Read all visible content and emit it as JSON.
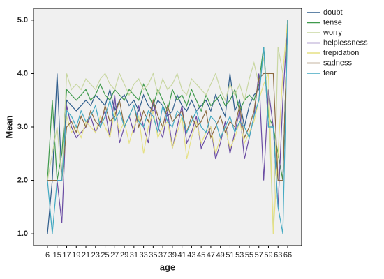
{
  "chart_data": {
    "type": "line",
    "x_label": "age",
    "y_label": "Mean",
    "categories": [
      "6",
      null,
      "15",
      null,
      "17",
      null,
      "19",
      null,
      "21",
      null,
      "23",
      null,
      "25",
      null,
      "27",
      null,
      "29",
      null,
      "31",
      null,
      "33",
      null,
      "35",
      null,
      "37",
      null,
      "39",
      null,
      "41",
      null,
      "43",
      null,
      "45",
      null,
      "47",
      null,
      "49",
      null,
      "51",
      null,
      "53",
      null,
      "55",
      null,
      "57",
      null,
      "59",
      null,
      "63",
      null,
      "66"
    ],
    "ylim": [
      0.78,
      5.22
    ],
    "yticks": [
      {
        "value": 1,
        "label": "1.0"
      },
      {
        "value": 2,
        "label": "2.0"
      },
      {
        "value": 3,
        "label": "3.0"
      },
      {
        "value": 4,
        "label": "4.0"
      },
      {
        "value": 5,
        "label": "5.0"
      }
    ],
    "series": [
      {
        "name": "doubt",
        "color": "#2f5d8c",
        "values": [
          1.0,
          2.0,
          4.0,
          2.0,
          3.5,
          3.4,
          3.3,
          3.4,
          3.5,
          3.4,
          3.6,
          3.5,
          3.4,
          3.7,
          3.3,
          3.5,
          3.6,
          3.4,
          3.5,
          3.3,
          3.6,
          3.4,
          3.3,
          3.5,
          3.4,
          3.2,
          3.3,
          3.6,
          3.4,
          3.3,
          3.5,
          3.3,
          3.4,
          3.5,
          3.3,
          3.6,
          3.4,
          3.2,
          4.0,
          3.3,
          3.5,
          3.0,
          3.4,
          3.6,
          3.7,
          4.5,
          3.0,
          3.0,
          2.0,
          2.0,
          5.0
        ]
      },
      {
        "name": "tense",
        "color": "#3f9a4c",
        "values": [
          2.0,
          3.5,
          2.0,
          2.5,
          3.7,
          3.6,
          3.5,
          3.6,
          3.7,
          3.5,
          3.6,
          3.8,
          3.6,
          3.5,
          3.7,
          3.6,
          3.5,
          3.7,
          3.6,
          3.5,
          3.8,
          3.6,
          3.4,
          3.7,
          3.5,
          3.3,
          3.7,
          3.5,
          3.6,
          3.4,
          3.7,
          3.5,
          3.3,
          3.6,
          3.4,
          3.5,
          3.6,
          3.4,
          3.5,
          3.7,
          3.3,
          3.5,
          3.6,
          3.5,
          3.8,
          4.5,
          3.2,
          3.0,
          2.5,
          2.0,
          5.0
        ]
      },
      {
        "name": "worry",
        "color": "#c9d7a2",
        "values": [
          2.0,
          2.5,
          3.0,
          2.0,
          4.0,
          3.7,
          3.8,
          3.7,
          3.9,
          3.8,
          3.7,
          3.9,
          4.0,
          3.8,
          3.7,
          4.0,
          3.8,
          3.6,
          3.8,
          3.9,
          3.7,
          3.8,
          4.0,
          3.6,
          3.9,
          3.7,
          3.8,
          4.0,
          3.7,
          3.6,
          3.9,
          3.8,
          3.7,
          3.6,
          3.8,
          4.0,
          3.7,
          3.5,
          3.8,
          3.6,
          3.8,
          3.5,
          3.9,
          4.2,
          3.8,
          4.3,
          3.5,
          1.0,
          4.5,
          4.0,
          5.0
        ]
      },
      {
        "name": "helplessness",
        "color": "#6a4ca3",
        "values": [
          2.0,
          2.0,
          2.0,
          1.2,
          3.4,
          3.0,
          2.8,
          2.9,
          3.0,
          3.2,
          2.9,
          3.1,
          3.3,
          2.8,
          3.6,
          2.7,
          3.0,
          3.2,
          2.9,
          3.4,
          3.0,
          2.7,
          3.5,
          3.0,
          2.8,
          3.3,
          2.6,
          3.0,
          3.4,
          2.7,
          2.9,
          3.2,
          2.6,
          2.8,
          3.0,
          2.4,
          2.7,
          3.1,
          2.5,
          2.9,
          3.3,
          2.4,
          2.8,
          3.2,
          4.0,
          2.0,
          3.7,
          3.0,
          1.5,
          3.5,
          5.0
        ]
      },
      {
        "name": "trepidation",
        "color": "#e6e184",
        "values": [
          2.0,
          2.0,
          2.0,
          2.0,
          3.2,
          2.9,
          3.0,
          2.8,
          3.1,
          3.0,
          2.9,
          3.2,
          3.0,
          2.8,
          3.3,
          2.9,
          3.1,
          2.7,
          3.0,
          3.2,
          2.5,
          3.0,
          3.3,
          2.8,
          3.0,
          3.1,
          2.6,
          2.9,
          3.2,
          2.4,
          2.8,
          3.1,
          2.7,
          2.9,
          3.0,
          2.5,
          2.8,
          3.0,
          2.6,
          2.8,
          3.1,
          2.7,
          2.9,
          3.1,
          3.5,
          3.8,
          4.0,
          1.0,
          2.5,
          4.0,
          5.0
        ]
      },
      {
        "name": "sadness",
        "color": "#8c6b42",
        "values": [
          2.0,
          2.0,
          2.0,
          2.0,
          3.0,
          3.1,
          2.9,
          3.2,
          3.0,
          3.3,
          3.1,
          3.0,
          3.4,
          3.1,
          3.2,
          3.5,
          3.0,
          3.2,
          3.4,
          3.0,
          3.3,
          3.1,
          3.5,
          3.2,
          3.0,
          3.4,
          3.1,
          3.2,
          3.3,
          2.9,
          3.2,
          3.0,
          3.1,
          3.3,
          2.8,
          3.0,
          3.2,
          2.9,
          3.1,
          3.0,
          3.4,
          2.8,
          3.0,
          3.3,
          3.9,
          4.0,
          4.0,
          4.0,
          2.0,
          2.0,
          5.0
        ]
      },
      {
        "name": "fear",
        "color": "#43a9c2",
        "values": [
          2.0,
          1.0,
          2.0,
          2.0,
          3.3,
          3.2,
          3.0,
          3.3,
          3.1,
          3.2,
          3.4,
          3.0,
          3.2,
          3.5,
          3.1,
          3.3,
          3.0,
          3.2,
          3.4,
          3.1,
          3.0,
          3.3,
          3.2,
          2.9,
          3.4,
          3.1,
          3.0,
          3.3,
          3.2,
          2.9,
          3.1,
          3.3,
          3.0,
          2.9,
          3.2,
          3.1,
          2.8,
          3.0,
          3.2,
          2.9,
          3.1,
          3.0,
          2.8,
          3.2,
          3.5,
          4.5,
          3.0,
          3.0,
          1.5,
          1.0,
          5.0
        ]
      }
    ]
  }
}
